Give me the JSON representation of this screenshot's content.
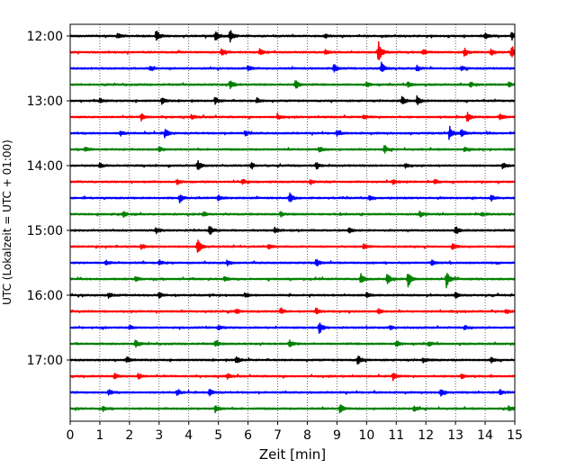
{
  "chart_data": {
    "type": "line",
    "chart_kind": "helicorder",
    "title": "",
    "xlabel": "Zeit  [min]",
    "ylabel": "UTC (Lokalzeit = UTC + 01:00)",
    "xlim": [
      0,
      15
    ],
    "x_ticks": [
      "0",
      "1",
      "2",
      "3",
      "4",
      "5",
      "6",
      "7",
      "8",
      "9",
      "10",
      "11",
      "12",
      "13",
      "14",
      "15"
    ],
    "y_ticks": [
      "12:00",
      "13:00",
      "14:00",
      "15:00",
      "16:00",
      "17:00"
    ],
    "grid": "vertical dotted at each minute",
    "trace_colors": [
      "#000000",
      "#ff0000",
      "#0000ff",
      "#008000"
    ],
    "traces": [
      {
        "time": "12:00",
        "color": "#000000",
        "events": [
          [
            1.6,
            0.35
          ],
          [
            2.9,
            0.9
          ],
          [
            4.9,
            0.7
          ],
          [
            5.4,
            0.9
          ],
          [
            8.6,
            0.3
          ],
          [
            14.0,
            0.4
          ],
          [
            14.9,
            0.5
          ]
        ]
      },
      {
        "time": "12:15",
        "color": "#ff0000",
        "events": [
          [
            5.1,
            0.5
          ],
          [
            6.4,
            0.45
          ],
          [
            8.6,
            0.35
          ],
          [
            10.4,
            1.6
          ],
          [
            11.9,
            0.4
          ],
          [
            13.3,
            0.5
          ],
          [
            14.2,
            0.5
          ],
          [
            14.9,
            0.9
          ]
        ]
      },
      {
        "time": "12:30",
        "color": "#0000ff",
        "events": [
          [
            2.7,
            0.4
          ],
          [
            6.0,
            0.4
          ],
          [
            8.9,
            0.6
          ],
          [
            10.5,
            0.8
          ],
          [
            11.7,
            0.4
          ],
          [
            13.2,
            0.35
          ]
        ]
      },
      {
        "time": "12:45",
        "color": "#008000",
        "events": [
          [
            5.4,
            0.7
          ],
          [
            7.6,
            0.7
          ],
          [
            10.0,
            0.4
          ],
          [
            11.4,
            0.4
          ],
          [
            13.5,
            0.35
          ],
          [
            14.8,
            0.3
          ]
        ]
      },
      {
        "time": "13:00",
        "color": "#000000",
        "events": [
          [
            1.0,
            0.3
          ],
          [
            3.1,
            0.45
          ],
          [
            4.9,
            0.45
          ],
          [
            6.3,
            0.35
          ],
          [
            11.2,
            0.6
          ],
          [
            11.7,
            0.6
          ]
        ]
      },
      {
        "time": "13:15",
        "color": "#ff0000",
        "events": [
          [
            2.4,
            0.45
          ],
          [
            4.1,
            0.3
          ],
          [
            7.0,
            0.4
          ],
          [
            9.9,
            0.3
          ],
          [
            13.4,
            0.7
          ],
          [
            14.5,
            0.5
          ]
        ]
      },
      {
        "time": "13:30",
        "color": "#0000ff",
        "events": [
          [
            1.7,
            0.35
          ],
          [
            3.2,
            0.7
          ],
          [
            5.9,
            0.35
          ],
          [
            9.0,
            0.4
          ],
          [
            12.8,
            0.95
          ],
          [
            13.2,
            0.6
          ]
        ]
      },
      {
        "time": "13:45",
        "color": "#008000",
        "events": [
          [
            0.5,
            0.35
          ],
          [
            3.0,
            0.35
          ],
          [
            8.4,
            0.4
          ],
          [
            10.6,
            0.5
          ],
          [
            13.3,
            0.3
          ]
        ]
      },
      {
        "time": "14:00",
        "color": "#000000",
        "events": [
          [
            1.0,
            0.35
          ],
          [
            4.3,
            0.75
          ],
          [
            6.1,
            0.35
          ],
          [
            8.3,
            0.45
          ],
          [
            11.3,
            0.3
          ],
          [
            14.6,
            0.4
          ]
        ]
      },
      {
        "time": "14:15",
        "color": "#ff0000",
        "events": [
          [
            3.6,
            0.35
          ],
          [
            5.8,
            0.35
          ],
          [
            8.1,
            0.35
          ],
          [
            10.9,
            0.35
          ],
          [
            12.3,
            0.35
          ]
        ]
      },
      {
        "time": "14:30",
        "color": "#0000ff",
        "events": [
          [
            3.7,
            0.6
          ],
          [
            5.0,
            0.4
          ],
          [
            7.4,
            0.75
          ],
          [
            10.1,
            0.3
          ],
          [
            14.2,
            0.4
          ]
        ]
      },
      {
        "time": "14:45",
        "color": "#008000",
        "events": [
          [
            1.8,
            0.35
          ],
          [
            4.5,
            0.3
          ],
          [
            7.1,
            0.35
          ],
          [
            11.8,
            0.4
          ],
          [
            13.9,
            0.3
          ]
        ]
      },
      {
        "time": "15:00",
        "color": "#000000",
        "events": [
          [
            2.9,
            0.4
          ],
          [
            4.7,
            0.75
          ],
          [
            6.9,
            0.35
          ],
          [
            9.4,
            0.4
          ],
          [
            13.0,
            0.7
          ]
        ]
      },
      {
        "time": "15:15",
        "color": "#ff0000",
        "events": [
          [
            2.4,
            0.35
          ],
          [
            4.3,
            1.2
          ],
          [
            6.7,
            0.35
          ],
          [
            9.9,
            0.35
          ],
          [
            12.9,
            0.4
          ]
        ]
      },
      {
        "time": "15:30",
        "color": "#0000ff",
        "events": [
          [
            1.2,
            0.35
          ],
          [
            3.0,
            0.35
          ],
          [
            5.3,
            0.35
          ],
          [
            8.3,
            0.6
          ],
          [
            12.2,
            0.35
          ]
        ]
      },
      {
        "time": "15:45",
        "color": "#008000",
        "events": [
          [
            2.2,
            0.3
          ],
          [
            5.2,
            0.3
          ],
          [
            9.8,
            0.8
          ],
          [
            10.7,
            0.7
          ],
          [
            11.4,
            1.0
          ],
          [
            12.7,
            1.3
          ]
        ]
      },
      {
        "time": "16:00",
        "color": "#000000",
        "events": [
          [
            1.3,
            0.35
          ],
          [
            3.0,
            0.35
          ],
          [
            5.9,
            0.35
          ],
          [
            10.0,
            0.35
          ],
          [
            13.0,
            0.4
          ]
        ]
      },
      {
        "time": "16:15",
        "color": "#ff0000",
        "events": [
          [
            5.6,
            0.35
          ],
          [
            7.1,
            0.35
          ],
          [
            8.3,
            0.45
          ],
          [
            10.4,
            0.35
          ],
          [
            14.7,
            0.35
          ]
        ]
      },
      {
        "time": "16:30",
        "color": "#0000ff",
        "events": [
          [
            2.0,
            0.3
          ],
          [
            5.0,
            0.35
          ],
          [
            8.4,
            0.9
          ],
          [
            10.8,
            0.35
          ],
          [
            13.3,
            0.35
          ]
        ]
      },
      {
        "time": "16:45",
        "color": "#008000",
        "events": [
          [
            2.2,
            0.5
          ],
          [
            4.9,
            0.45
          ],
          [
            7.4,
            0.5
          ],
          [
            11.0,
            0.5
          ],
          [
            12.1,
            0.35
          ]
        ]
      },
      {
        "time": "17:00",
        "color": "#000000",
        "events": [
          [
            1.9,
            0.4
          ],
          [
            5.6,
            0.6
          ],
          [
            9.7,
            0.7
          ],
          [
            11.9,
            0.35
          ],
          [
            14.2,
            0.35
          ]
        ]
      },
      {
        "time": "17:15",
        "color": "#ff0000",
        "events": [
          [
            1.5,
            0.35
          ],
          [
            2.3,
            0.4
          ],
          [
            5.3,
            0.35
          ],
          [
            10.9,
            0.6
          ],
          [
            13.2,
            0.35
          ]
        ]
      },
      {
        "time": "17:30",
        "color": "#0000ff",
        "events": [
          [
            1.3,
            0.35
          ],
          [
            3.6,
            0.4
          ],
          [
            4.7,
            0.55
          ],
          [
            12.5,
            0.5
          ],
          [
            14.5,
            0.35
          ]
        ]
      },
      {
        "time": "17:45",
        "color": "#008000",
        "events": [
          [
            1.1,
            0.35
          ],
          [
            4.9,
            0.5
          ],
          [
            9.1,
            0.65
          ],
          [
            11.6,
            0.35
          ],
          [
            14.8,
            0.35
          ]
        ]
      }
    ]
  }
}
